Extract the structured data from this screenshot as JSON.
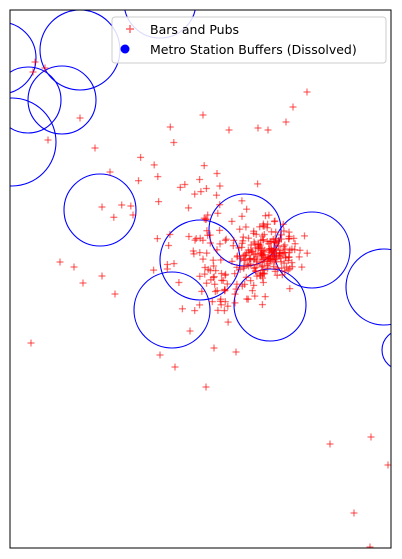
{
  "legend": {
    "bars_label": "Bars and Pubs",
    "metro_label": "Metro Station Buffers (Dissolved)"
  },
  "colors": {
    "bars": "#ff0000",
    "buffer_outline": "#0000ff",
    "frame": "#000000",
    "background": "#ffffff"
  },
  "symbols": {
    "bars": "plus-marker",
    "metro": "filled-circle-marker"
  }
}
